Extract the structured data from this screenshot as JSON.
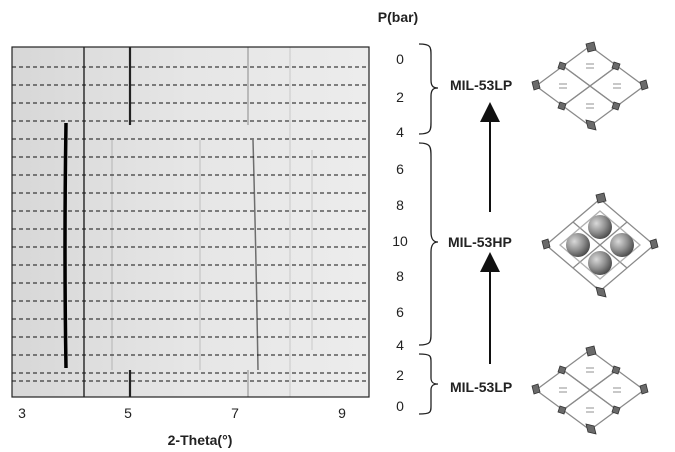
{
  "pressure_header": "P(bar)",
  "pressure_labels": [
    "0",
    "2",
    "4",
    "6",
    "8",
    "10",
    "8",
    "6",
    "4",
    "2",
    "0"
  ],
  "x_tick_labels": [
    "3",
    "5",
    "7",
    "9"
  ],
  "x_axis_label": "2-Theta(°)",
  "phases": {
    "top": "MIL-53LP",
    "middle": "MIL-53HP",
    "bottom": "MIL-53LP"
  },
  "colors": {
    "frame": "#222222",
    "dashed_line": "#111111",
    "reflection": "#000000",
    "sphere": "#8d8d8d"
  },
  "icons": [
    "up-arrow-icon",
    "framework-lp-icon",
    "framework-hp-icon",
    "curly-brace-icon"
  ]
}
